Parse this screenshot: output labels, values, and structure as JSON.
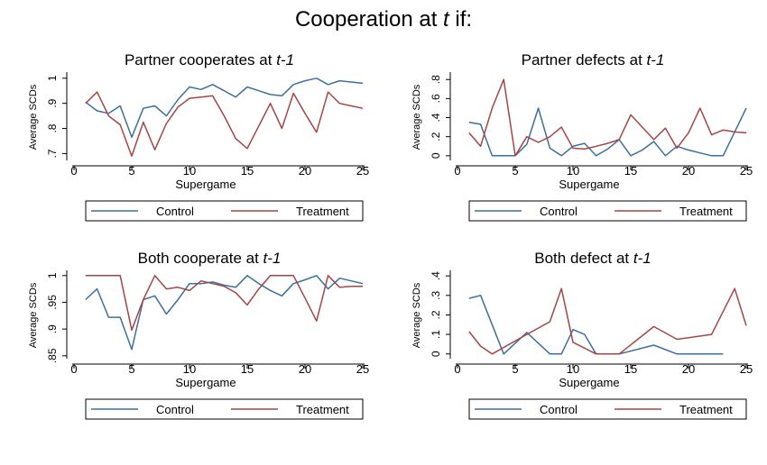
{
  "figure_title": {
    "prefix": "Cooperation at ",
    "var": "t",
    "suffix": " if:"
  },
  "colors": {
    "control": "#3b6fa0",
    "treatment": "#a64545",
    "axis": "#000000",
    "legend_border": "#000000"
  },
  "chart_data": [
    {
      "type": "line",
      "title": {
        "text": "Partner cooperates at ",
        "italic": "t-1"
      },
      "xlabel": "Supergame",
      "ylabel": "Average SCDs",
      "xlim": [
        1,
        25
      ],
      "xticks": [
        0,
        5,
        10,
        15,
        20,
        25
      ],
      "ylim": [
        0.68,
        1.01
      ],
      "yticks": [
        0.7,
        0.8,
        0.9,
        1.0
      ],
      "ytick_labels": [
        ".7",
        ".8",
        ".9",
        "1"
      ],
      "legend": "bottom",
      "series": [
        {
          "name": "Control",
          "color": "#3b6fa0",
          "x": [
            1,
            2,
            3,
            4,
            5,
            6,
            7,
            8,
            9,
            10,
            11,
            12,
            13,
            14,
            15,
            16,
            17,
            18,
            19,
            20,
            21,
            22,
            23,
            24,
            25
          ],
          "y": [
            0.905,
            0.87,
            0.86,
            0.89,
            0.765,
            0.88,
            0.89,
            0.85,
            0.915,
            0.965,
            0.955,
            0.975,
            0.95,
            0.925,
            0.965,
            0.95,
            0.935,
            0.93,
            0.975,
            0.99,
            1.0,
            0.975,
            0.99,
            0.985,
            0.98
          ]
        },
        {
          "name": "Treatment",
          "color": "#a64545",
          "x": [
            1,
            2,
            3,
            4,
            5,
            6,
            7,
            8,
            9,
            10,
            11,
            12,
            13,
            14,
            15,
            16,
            17,
            18,
            19,
            20,
            21,
            22,
            23,
            24,
            25
          ],
          "y": [
            0.9,
            0.945,
            0.85,
            0.815,
            0.69,
            0.825,
            0.715,
            0.82,
            0.885,
            0.92,
            0.925,
            0.93,
            0.85,
            0.76,
            0.72,
            0.81,
            0.9,
            0.8,
            0.94,
            0.86,
            0.785,
            0.945,
            0.9,
            0.89,
            0.88
          ]
        }
      ]
    },
    {
      "type": "line",
      "title": {
        "text": "Partner defects at ",
        "italic": "t-1"
      },
      "xlabel": "Supergame",
      "ylabel": "Average SCDs",
      "xlim": [
        1,
        25
      ],
      "xticks": [
        0,
        5,
        10,
        15,
        20,
        25
      ],
      "ylim": [
        -0.03,
        0.84
      ],
      "yticks": [
        0,
        0.2,
        0.4,
        0.6,
        0.8
      ],
      "ytick_labels": [
        "0",
        ".2",
        ".4",
        ".6",
        ".8"
      ],
      "legend": "bottom",
      "series": [
        {
          "name": "Control",
          "color": "#3b6fa0",
          "x": [
            1,
            2,
            3,
            4,
            5,
            6,
            7,
            8,
            9,
            10,
            11,
            12,
            13,
            14,
            15,
            16,
            17,
            18,
            19,
            20,
            21,
            22,
            23,
            24,
            25
          ],
          "y": [
            0.35,
            0.33,
            0.0,
            0.0,
            0.0,
            0.12,
            0.5,
            0.08,
            0.0,
            0.1,
            0.13,
            0.0,
            0.07,
            0.17,
            0.0,
            0.06,
            0.15,
            0.0,
            0.1,
            0.06,
            0.03,
            0.0,
            0.0,
            0.25,
            0.5
          ]
        },
        {
          "name": "Treatment",
          "color": "#a64545",
          "x": [
            1,
            2,
            3,
            4,
            5,
            6,
            7,
            8,
            9,
            10,
            11,
            12,
            13,
            14,
            15,
            16,
            17,
            18,
            19,
            20,
            21,
            22,
            23,
            24,
            25
          ],
          "y": [
            0.24,
            0.1,
            0.5,
            0.8,
            0.0,
            0.2,
            0.14,
            0.2,
            0.3,
            0.08,
            0.07,
            0.1,
            0.13,
            0.17,
            0.43,
            0.3,
            0.17,
            0.29,
            0.08,
            0.24,
            0.5,
            0.22,
            0.27,
            0.25,
            0.24
          ]
        }
      ]
    },
    {
      "type": "line",
      "title": {
        "text": "Both cooperate at ",
        "italic": "t-1"
      },
      "xlabel": "Supergame",
      "ylabel": "Average SCDs",
      "xlim": [
        1,
        25
      ],
      "xticks": [
        0,
        5,
        10,
        15,
        20,
        25
      ],
      "ylim": [
        0.848,
        1.003
      ],
      "yticks": [
        0.85,
        0.9,
        0.95,
        1.0
      ],
      "ytick_labels": [
        ".85",
        ".9",
        ".95",
        "1"
      ],
      "legend": "bottom",
      "series": [
        {
          "name": "Control",
          "color": "#3b6fa0",
          "x": [
            1,
            2,
            3,
            4,
            5,
            6,
            7,
            8,
            9,
            10,
            11,
            12,
            13,
            14,
            15,
            16,
            17,
            18,
            19,
            20,
            21,
            22,
            23,
            24,
            25
          ],
          "y": [
            0.955,
            0.975,
            0.922,
            0.922,
            0.862,
            0.955,
            0.962,
            0.928,
            0.955,
            0.985,
            0.985,
            0.988,
            0.982,
            0.978,
            1.0,
            0.985,
            0.972,
            0.962,
            0.985,
            0.992,
            1.0,
            0.975,
            0.995,
            0.99,
            0.985
          ]
        },
        {
          "name": "Treatment",
          "color": "#a64545",
          "x": [
            1,
            2,
            3,
            4,
            5,
            6,
            7,
            8,
            9,
            10,
            11,
            12,
            13,
            14,
            15,
            16,
            17,
            18,
            19,
            20,
            21,
            22,
            23,
            24,
            25
          ],
          "y": [
            1.0,
            1.0,
            1.0,
            1.0,
            0.898,
            0.955,
            1.0,
            0.975,
            0.978,
            0.972,
            0.99,
            0.985,
            0.98,
            0.968,
            0.945,
            0.975,
            1.0,
            1.0,
            1.0,
            0.958,
            0.915,
            1.0,
            0.978,
            0.98,
            0.98
          ]
        }
      ]
    },
    {
      "type": "line",
      "title": {
        "text": "Both defect at ",
        "italic": "t-1"
      },
      "xlabel": "Supergame",
      "ylabel": "Average SCDs",
      "xlim": [
        1,
        25
      ],
      "xticks": [
        0,
        5,
        10,
        15,
        20,
        25
      ],
      "ylim": [
        -0.015,
        0.41
      ],
      "yticks": [
        0,
        0.1,
        0.2,
        0.3,
        0.4
      ],
      "ytick_labels": [
        "0",
        ".1",
        ".2",
        ".3",
        ".4"
      ],
      "legend": "bottom",
      "series": [
        {
          "name": "Control",
          "color": "#3b6fa0",
          "x": [
            1,
            2,
            4,
            6,
            8,
            9,
            10,
            11,
            12,
            14,
            17,
            19,
            21,
            23
          ],
          "y": [
            0.285,
            0.3,
            0.0,
            0.11,
            0.0,
            0.0,
            0.125,
            0.1,
            0.0,
            0.0,
            0.045,
            0.0,
            0.0,
            0.0
          ]
        },
        {
          "name": "Treatment",
          "color": "#a64545",
          "x": [
            1,
            2,
            3,
            6,
            8,
            9,
            10,
            12,
            14,
            17,
            19,
            22,
            24,
            25
          ],
          "y": [
            0.115,
            0.04,
            0.0,
            0.1,
            0.165,
            0.335,
            0.06,
            0.0,
            0.0,
            0.14,
            0.075,
            0.1,
            0.335,
            0.145
          ]
        }
      ]
    }
  ]
}
